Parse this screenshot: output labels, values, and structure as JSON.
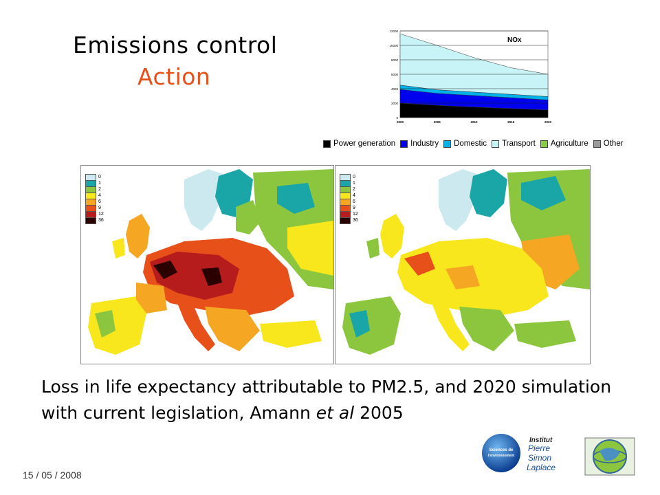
{
  "slide": {
    "title_line1": "Emissions control",
    "title_line2": "Action",
    "caption_part1": "Loss in life expectancy attributable to PM2.5, and 2020 simulation with current legislation, Amann ",
    "caption_italic": "et al",
    "caption_part2": " 2005",
    "date": "15 / 05 / 2008",
    "accent_color": "#e8501a"
  },
  "chart_data": {
    "type": "area",
    "title": "NOx",
    "x": [
      2000,
      2005,
      2010,
      2015,
      2020
    ],
    "y_ticks": [
      "0",
      "2000",
      "4000",
      "6000",
      "8000",
      "10000",
      "12000"
    ],
    "ylim": [
      0,
      12000
    ],
    "series": [
      {
        "name": "Power generation",
        "color": "#000000",
        "values": [
          2000,
          1700,
          1450,
          1250,
          1050
        ]
      },
      {
        "name": "Industry",
        "color": "#0000ee",
        "values": [
          1900,
          1650,
          1600,
          1500,
          1400
        ]
      },
      {
        "name": "Domestic",
        "color": "#00b0e8",
        "values": [
          600,
          500,
          480,
          470,
          460
        ]
      },
      {
        "name": "Transport",
        "color": "#c8f4f8",
        "values": [
          7100,
          6150,
          4770,
          3680,
          3090
        ]
      },
      {
        "name": "Agriculture",
        "color": "#88cc44",
        "values": [
          0,
          0,
          0,
          0,
          0
        ]
      },
      {
        "name": "Other",
        "color": "#999999",
        "values": [
          0,
          0,
          0,
          0,
          0
        ]
      }
    ]
  },
  "maps": {
    "legend_values": [
      "0",
      "1",
      "2",
      "4",
      "6",
      "9",
      "12",
      "36"
    ],
    "legend_colors": [
      "#cde9f0",
      "#1aa6a6",
      "#8cc63e",
      "#f8e71c",
      "#f5a623",
      "#e8501a",
      "#b71c1c",
      "#2b0000"
    ]
  },
  "logos": {
    "logo1_text_line1": "Sciences de",
    "logo1_text_line2": "l'environnement",
    "logo2_line1": "Institut",
    "logo2_line2": "Pierre",
    "logo2_line3": "Simon",
    "logo2_line4": "Laplace"
  }
}
